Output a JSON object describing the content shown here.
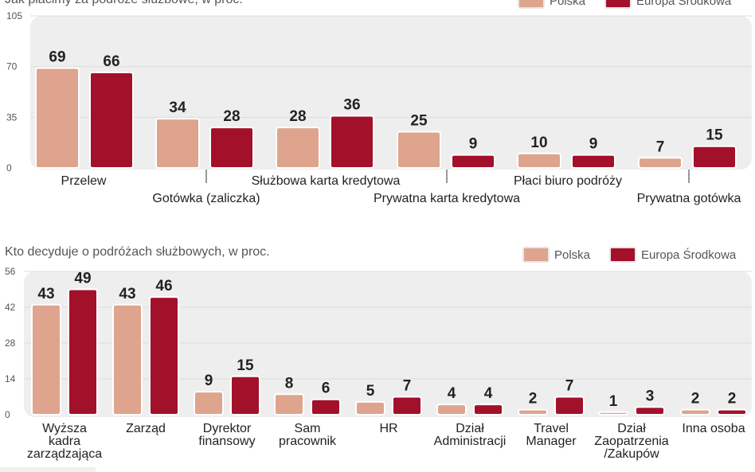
{
  "colors": {
    "polska": "#dea48d",
    "europa": "#a3102a",
    "panel": "#eeeeee",
    "text": "#222222"
  },
  "chart_data": [
    {
      "type": "bar",
      "title": "Jak płacimy za podróże służbowe, w proc.",
      "legend": [
        "Polska",
        "Europa Środkowa"
      ],
      "ylim": [
        0,
        105
      ],
      "yticks": [
        "0",
        "35",
        "70",
        "105"
      ],
      "categories": [
        "Przelew",
        "Gotówka (zaliczka)",
        "Służbowa karta kredytowa",
        "Prywatna karta kredytowa",
        "Płaci biuro podróży",
        "Prywatna gotówka"
      ],
      "series": [
        {
          "name": "Polska",
          "values": [
            69,
            34,
            28,
            25,
            10,
            7
          ]
        },
        {
          "name": "Europa Środkowa",
          "values": [
            66,
            28,
            36,
            9,
            9,
            15
          ]
        }
      ]
    },
    {
      "type": "bar",
      "title": "Kto decyduje o podróżach służbowych, w proc.",
      "legend": [
        "Polska",
        "Europa Środkowa"
      ],
      "ylim": [
        0,
        56
      ],
      "yticks": [
        "0",
        "14",
        "28",
        "42",
        "56"
      ],
      "categories": [
        "Wyższa kadra zarządzająca",
        "Zarząd",
        "Dyrektor finansowy",
        "Sam pracownik",
        "HR",
        "Dział Administracji",
        "Travel Manager",
        "Dział Zaopatrzenia /Zakupów",
        "Inna osoba"
      ],
      "category_lines": [
        [
          "Wyższa",
          "kadra",
          "zarządzająca"
        ],
        [
          "Zarząd"
        ],
        [
          "Dyrektor",
          "finansowy"
        ],
        [
          "Sam",
          "pracownik"
        ],
        [
          "HR"
        ],
        [
          "Dział",
          "Administracji"
        ],
        [
          "Travel",
          "Manager"
        ],
        [
          "Dział",
          "Zaopatrzenia",
          "/Zakupów"
        ],
        [
          "Inna osoba"
        ]
      ],
      "series": [
        {
          "name": "Polska",
          "values": [
            43,
            43,
            9,
            8,
            5,
            4,
            2,
            1,
            2
          ]
        },
        {
          "name": "Europa Środkowa",
          "values": [
            49,
            46,
            15,
            6,
            7,
            4,
            7,
            3,
            2
          ]
        }
      ]
    }
  ]
}
